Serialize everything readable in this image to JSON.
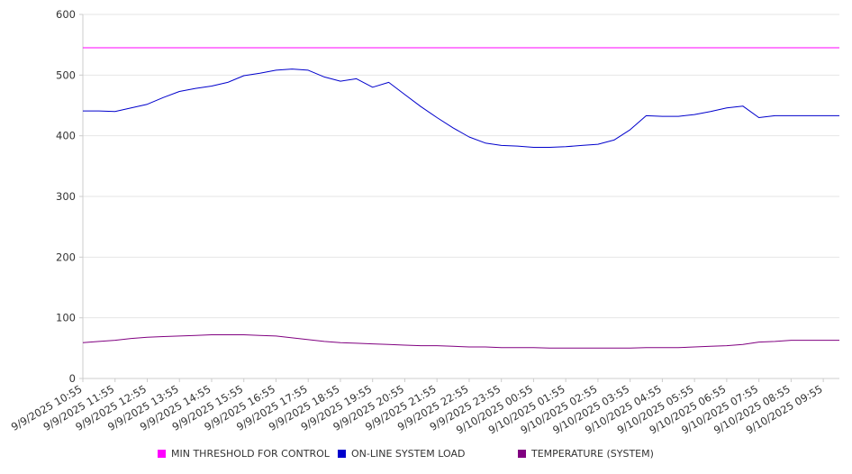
{
  "chart_data": {
    "type": "line",
    "xlabel": "",
    "ylabel": "",
    "ylim": [
      0,
      600
    ],
    "yticks": [
      0,
      100,
      200,
      300,
      400,
      500,
      600
    ],
    "grid": true,
    "legend_position": "bottom",
    "x_tick_labels": [
      "9/9/2025 10:55",
      "9/9/2025 11:55",
      "9/9/2025 12:55",
      "9/9/2025 13:55",
      "9/9/2025 14:55",
      "9/9/2025 15:55",
      "9/9/2025 16:55",
      "9/9/2025 17:55",
      "9/9/2025 18:55",
      "9/9/2025 19:55",
      "9/9/2025 20:55",
      "9/9/2025 21:55",
      "9/9/2025 22:55",
      "9/9/2025 23:55",
      "9/10/2025 00:55",
      "9/10/2025 01:55",
      "9/10/2025 02:55",
      "9/10/2025 03:55",
      "9/10/2025 04:55",
      "9/10/2025 05:55",
      "9/10/2025 06:55",
      "9/10/2025 07:55",
      "9/10/2025 08:55",
      "9/10/2025 09:55"
    ],
    "x": [
      "9/9/2025 10:55",
      "9/9/2025 11:25",
      "9/9/2025 11:55",
      "9/9/2025 12:25",
      "9/9/2025 12:55",
      "9/9/2025 13:25",
      "9/9/2025 13:55",
      "9/9/2025 14:25",
      "9/9/2025 14:55",
      "9/9/2025 15:25",
      "9/9/2025 15:55",
      "9/9/2025 16:25",
      "9/9/2025 16:55",
      "9/9/2025 17:25",
      "9/9/2025 17:55",
      "9/9/2025 18:25",
      "9/9/2025 18:55",
      "9/9/2025 19:25",
      "9/9/2025 19:55",
      "9/9/2025 20:25",
      "9/9/2025 20:55",
      "9/9/2025 21:25",
      "9/9/2025 21:55",
      "9/9/2025 22:25",
      "9/9/2025 22:55",
      "9/9/2025 23:25",
      "9/9/2025 23:55",
      "9/10/2025 00:25",
      "9/10/2025 00:55",
      "9/10/2025 01:25",
      "9/10/2025 01:55",
      "9/10/2025 02:25",
      "9/10/2025 02:55",
      "9/10/2025 03:25",
      "9/10/2025 03:55",
      "9/10/2025 04:25",
      "9/10/2025 04:55",
      "9/10/2025 05:25",
      "9/10/2025 05:55",
      "9/10/2025 06:25",
      "9/10/2025 06:55",
      "9/10/2025 07:25",
      "9/10/2025 07:55",
      "9/10/2025 08:25",
      "9/10/2025 08:55",
      "9/10/2025 09:25",
      "9/10/2025 09:55",
      "9/10/2025 10:25"
    ],
    "series": [
      {
        "name": "MIN THRESHOLD FOR CONTROL",
        "color": "#ff00ff",
        "values": [
          545,
          545,
          545,
          545,
          545,
          545,
          545,
          545,
          545,
          545,
          545,
          545,
          545,
          545,
          545,
          545,
          545,
          545,
          545,
          545,
          545,
          545,
          545,
          545,
          545,
          545,
          545,
          545,
          545,
          545,
          545,
          545,
          545,
          545,
          545,
          545,
          545,
          545,
          545,
          545,
          545,
          545,
          545,
          545,
          545,
          545,
          545,
          545
        ]
      },
      {
        "name": "ON-LINE SYSTEM LOAD",
        "color": "#0000cc",
        "values": [
          441,
          441,
          440,
          446,
          452,
          463,
          473,
          478,
          482,
          488,
          499,
          503,
          508,
          510,
          508,
          497,
          490,
          494,
          480,
          488,
          468,
          448,
          430,
          413,
          398,
          388,
          384,
          383,
          381,
          381,
          382,
          384,
          386,
          393,
          410,
          433,
          432,
          432,
          435,
          440,
          446,
          449,
          430,
          433,
          433,
          433,
          433,
          433
        ]
      },
      {
        "name": "TEMPERATURE (SYSTEM)",
        "color": "#800080",
        "values": [
          59,
          61,
          63,
          66,
          68,
          69,
          70,
          71,
          72,
          72,
          72,
          71,
          70,
          67,
          64,
          61,
          59,
          58,
          57,
          56,
          55,
          54,
          54,
          53,
          52,
          52,
          51,
          51,
          51,
          50,
          50,
          50,
          50,
          50,
          50,
          51,
          51,
          51,
          52,
          53,
          54,
          56,
          60,
          61,
          63,
          63,
          63,
          63
        ]
      }
    ]
  },
  "legend": {
    "items": [
      {
        "label": "MIN THRESHOLD FOR CONTROL",
        "color": "#ff00ff"
      },
      {
        "label": "ON-LINE SYSTEM LOAD",
        "color": "#0000cc"
      },
      {
        "label": "TEMPERATURE (SYSTEM)",
        "color": "#800080"
      }
    ]
  }
}
